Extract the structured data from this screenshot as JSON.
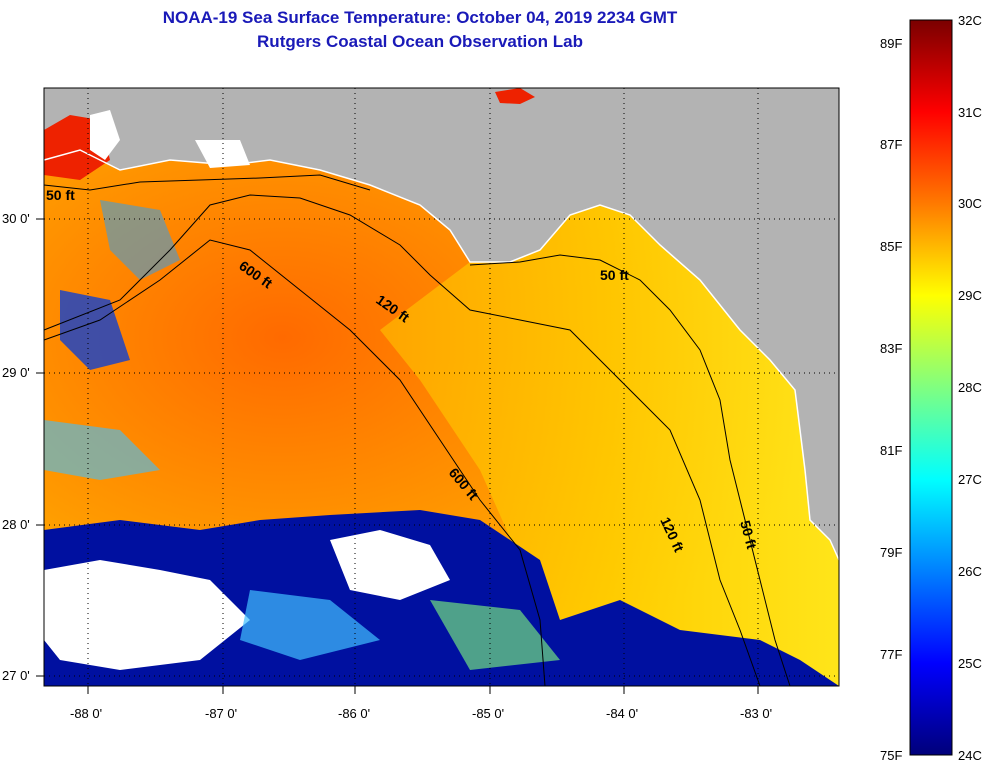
{
  "title": {
    "line1": "NOAA-19 Sea Surface Temperature:  October 04, 2019 2234 GMT",
    "line2": "Rutgers Coastal Ocean Observation Lab"
  },
  "map": {
    "background_color": "#b3b3b3",
    "lat_labels": [
      "30 0'",
      "29 0'",
      "28 0'",
      "27 0'"
    ],
    "lon_labels": [
      "-88 0'",
      "-87 0'",
      "-86 0'",
      "-85 0'",
      "-84 0'",
      "-83 0'"
    ],
    "contour_labels": [
      "50 ft",
      "600 ft",
      "120 ft",
      "50 ft",
      "600 ft",
      "120 ft",
      "50 ft"
    ]
  },
  "colorbar": {
    "fahrenheit_labels": [
      "89F",
      "87F",
      "85F",
      "83F",
      "81F",
      "79F",
      "77F",
      "75F"
    ],
    "celsius_labels": [
      "32C",
      "31C",
      "30C",
      "29C",
      "28C",
      "27C",
      "26C",
      "25C",
      "24C"
    ],
    "colors": [
      "#7a0000",
      "#ff0000",
      "#ff7a00",
      "#ffff00",
      "#80ff80",
      "#00ffff",
      "#0080ff",
      "#0000ff",
      "#00007a"
    ]
  }
}
